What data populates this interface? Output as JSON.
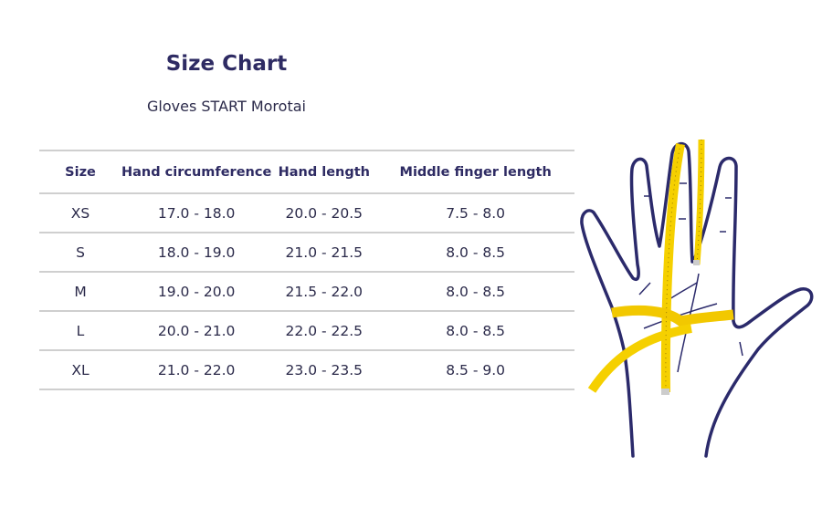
{
  "title": "Size Chart",
  "subtitle": "Gloves START Morotai",
  "table": {
    "headers": [
      "Size",
      "Hand circumference",
      "Hand length",
      "Middle finger length"
    ],
    "rows": [
      [
        "XS",
        "17.0 - 18.0",
        "20.0 - 20.5",
        "7.5 - 8.0"
      ],
      [
        "S",
        "18.0 - 19.0",
        "21.0 - 21.5",
        "8.0 - 8.5"
      ],
      [
        "M",
        "19.0 - 20.0",
        "21.5 - 22.0",
        "8.0 - 8.5"
      ],
      [
        "L",
        "20.0 - 21.0",
        "22.0 - 22.5",
        "8.0 - 8.5"
      ],
      [
        "XL",
        "21.0 - 22.0",
        "23.0 - 23.5",
        "8.5 - 9.0"
      ]
    ]
  },
  "colors": {
    "outline": "#2b2a6b",
    "tape": "#f5d000",
    "title": "#2e2b63"
  },
  "illustration": "hand-measuring-tape-icon"
}
